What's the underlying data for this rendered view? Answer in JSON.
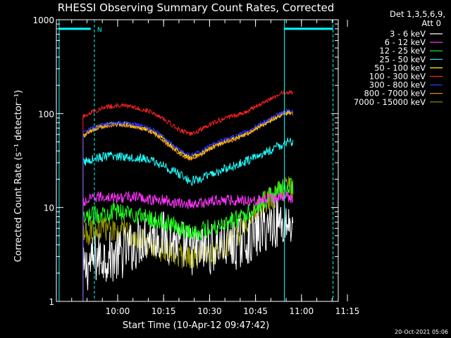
{
  "chart_data": {
    "type": "line",
    "title": "RHESSI Observing Summary Count Rates, Corrected",
    "xlabel": "Start Time (10-Apr-12 09:47:42)",
    "ylabel": "Corrected Count Rate (s⁻¹ detector⁻¹)",
    "yscale": "log",
    "ylim": [
      1,
      1000
    ],
    "xlim_minutes": [
      -7.7,
      84.3
    ],
    "x_ticks": [
      "10:00",
      "10:15",
      "10:30",
      "10:45",
      "11:00",
      "11:15"
    ],
    "y_ticks": [
      "1",
      "10",
      "100",
      "1000"
    ],
    "legend_header": [
      "Det 1,3,5,6,9,",
      "Att 0"
    ],
    "legend_position": "right",
    "timestamp": "20-Oct-2021 05:06",
    "x_minutes": [
      1,
      3,
      6,
      9,
      12,
      15,
      18,
      21,
      24,
      27,
      30,
      33,
      36,
      39,
      42,
      45,
      48,
      51,
      54,
      57,
      60,
      63,
      66,
      68,
      69.5
    ],
    "series": [
      {
        "name": "3 - 6 keV",
        "color": "#ffffff",
        "noise": 0.55,
        "values": [
          2,
          2.5,
          3,
          3,
          3,
          3.5,
          4,
          5,
          5,
          5,
          4.5,
          4,
          3.5,
          3.5,
          3.5,
          4,
          4,
          4,
          4.5,
          5,
          6,
          7,
          7,
          7,
          7
        ]
      },
      {
        "name": "6 - 12 keV",
        "color": "#ff33ff",
        "noise": 0.12,
        "values": [
          11,
          12,
          13,
          13,
          12.5,
          13,
          13,
          12.5,
          12,
          12,
          11.5,
          11,
          11,
          11,
          11.5,
          12,
          12,
          12,
          12,
          12,
          12,
          12.5,
          13,
          13,
          12.5
        ]
      },
      {
        "name": "12 - 25 keV",
        "color": "#22ff22",
        "noise": 0.2,
        "values": [
          7,
          8,
          8.5,
          9,
          9,
          9,
          8.5,
          8,
          7.5,
          7,
          6.5,
          6,
          5.5,
          5.5,
          6,
          6.5,
          7,
          7.5,
          8.5,
          10,
          12,
          14,
          16,
          17,
          17
        ]
      },
      {
        "name": "25 - 50 keV",
        "color": "#22ffff",
        "noise": 0.1,
        "values": [
          30,
          32,
          34,
          35,
          35,
          35,
          34,
          33,
          31,
          28,
          25,
          22,
          19,
          20,
          22,
          24,
          26,
          28,
          31,
          34,
          38,
          42,
          47,
          50,
          48
        ]
      },
      {
        "name": "50 - 100 keV",
        "color": "#ffff00",
        "noise": 0.05,
        "values": [
          57,
          65,
          72,
          76,
          78,
          77,
          74,
          70,
          64,
          55,
          45,
          38,
          34,
          37,
          42,
          47,
          51,
          55,
          60,
          68,
          78,
          88,
          98,
          103,
          100
        ]
      },
      {
        "name": "100 - 300 keV",
        "color": "#ff2222",
        "noise": 0.05,
        "values": [
          92,
          102,
          110,
          118,
          122,
          120,
          116,
          110,
          102,
          90,
          76,
          66,
          60,
          66,
          76,
          84,
          90,
          96,
          104,
          116,
          132,
          150,
          165,
          170,
          168
        ]
      },
      {
        "name": "300 - 800 keV",
        "color": "#3333ff",
        "noise": 0.04,
        "values": [
          62,
          68,
          74,
          78,
          80,
          79,
          77,
          73,
          67,
          57,
          47,
          40,
          36,
          39,
          45,
          50,
          54,
          58,
          64,
          72,
          82,
          93,
          103,
          108,
          104
        ]
      },
      {
        "name": "800 - 7000 keV",
        "color": "#ff9922",
        "noise": 0.04,
        "values": [
          58,
          64,
          70,
          74,
          76,
          75,
          72,
          68,
          62,
          52,
          43,
          36,
          33,
          36,
          41,
          46,
          50,
          54,
          60,
          68,
          78,
          89,
          99,
          104,
          100
        ]
      },
      {
        "name": "7000 - 15000 keV",
        "color": "#999900",
        "noise": 0.28,
        "values": [
          5,
          5.5,
          6,
          6,
          6,
          5.5,
          5,
          4.5,
          4,
          3.5,
          3.2,
          3,
          3,
          3,
          3.2,
          3.5,
          4,
          5,
          6.5,
          8.5,
          11,
          13,
          15,
          16,
          15
        ]
      }
    ],
    "attenuator_flags": [
      {
        "label": "N",
        "color": "#00ffff"
      }
    ]
  }
}
